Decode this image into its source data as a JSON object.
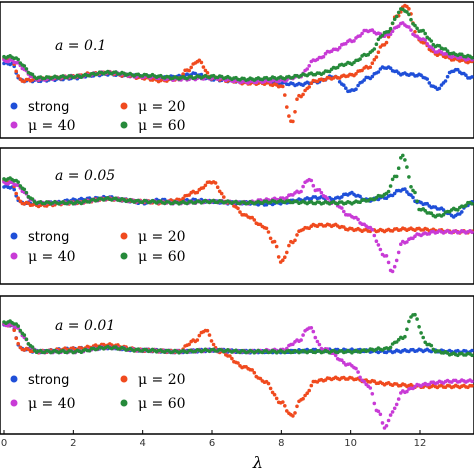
{
  "colors": {
    "strong": "#1f4fd8",
    "mu20": "#f04a1e",
    "mu40": "#c83bd6",
    "mu60": "#268a3a"
  },
  "x_axis": {
    "label": "λ",
    "ticks": [
      "0",
      "2",
      "4",
      "6",
      "8",
      "10",
      "12"
    ]
  },
  "legend": {
    "strong": "strong",
    "mu20": "μ = 20",
    "mu40": "μ = 40",
    "mu60": "μ = 60"
  },
  "chart_data": [
    {
      "type": "scatter",
      "annotation": "a = 0.1",
      "xlim": [
        0,
        13.5
      ],
      "ylim": [
        0,
        1
      ],
      "legend_position": "bottom-left",
      "series": [
        {
          "name": "strong",
          "x": [
            0.2,
            0.5,
            1,
            1.5,
            2,
            2.5,
            3,
            3.5,
            4,
            4.5,
            5,
            5.5,
            6,
            6.5,
            7,
            7.5,
            8,
            8.5,
            9,
            9.5,
            10,
            10.5,
            11,
            11.5,
            12,
            12.5,
            13,
            13.5
          ],
          "y": [
            0.55,
            0.42,
            0.42,
            0.43,
            0.44,
            0.46,
            0.47,
            0.46,
            0.45,
            0.44,
            0.45,
            0.47,
            0.43,
            0.42,
            0.41,
            0.42,
            0.4,
            0.39,
            0.41,
            0.45,
            0.34,
            0.44,
            0.52,
            0.47,
            0.46,
            0.36,
            0.5,
            0.44
          ]
        },
        {
          "name": "μ = 20",
          "x": [
            0.2,
            0.5,
            1,
            1.5,
            2,
            2.5,
            3,
            3.5,
            4,
            4.5,
            5,
            5.3,
            5.6,
            6,
            6.5,
            7,
            7.5,
            8,
            8.3,
            8.5,
            9,
            9.5,
            10,
            10.5,
            11,
            11.3,
            11.6,
            12,
            12.5,
            13,
            13.5
          ],
          "y": [
            0.58,
            0.42,
            0.43,
            0.44,
            0.45,
            0.47,
            0.48,
            0.46,
            0.44,
            0.42,
            0.43,
            0.5,
            0.57,
            0.44,
            0.42,
            0.4,
            0.4,
            0.38,
            0.1,
            0.3,
            0.42,
            0.44,
            0.46,
            0.52,
            0.7,
            0.9,
            0.99,
            0.72,
            0.62,
            0.58,
            0.56
          ]
        },
        {
          "name": "μ = 40",
          "x": [
            0.2,
            1,
            2,
            3,
            4,
            5,
            6,
            7,
            8,
            8.5,
            9,
            9.5,
            10,
            10.5,
            11,
            11.5,
            12,
            12.5,
            13,
            13.5
          ],
          "y": [
            0.57,
            0.43,
            0.45,
            0.48,
            0.45,
            0.43,
            0.44,
            0.41,
            0.42,
            0.45,
            0.58,
            0.65,
            0.72,
            0.8,
            0.76,
            0.85,
            0.74,
            0.64,
            0.6,
            0.58
          ]
        },
        {
          "name": "μ = 60",
          "x": [
            0.2,
            1,
            2,
            3,
            4,
            5,
            6,
            7,
            8,
            9,
            10,
            10.5,
            11,
            11.5,
            12,
            12.5,
            13,
            13.5
          ],
          "y": [
            0.6,
            0.44,
            0.45,
            0.48,
            0.46,
            0.44,
            0.45,
            0.43,
            0.44,
            0.47,
            0.55,
            0.62,
            0.78,
            0.96,
            0.8,
            0.68,
            0.62,
            0.6
          ]
        }
      ]
    },
    {
      "type": "scatter",
      "annotation": "a = 0.05",
      "xlim": [
        0,
        13.5
      ],
      "ylim": [
        0,
        1
      ],
      "legend_position": "bottom-left",
      "series": [
        {
          "name": "strong",
          "x": [
            0.2,
            0.5,
            1,
            1.5,
            2,
            2.5,
            3,
            3.5,
            4,
            4.5,
            5,
            5.5,
            6,
            6.5,
            7,
            7.5,
            8,
            8.5,
            9,
            9.5,
            10,
            10.5,
            11,
            11.5,
            12,
            12.5,
            13,
            13.5
          ],
          "y": [
            0.72,
            0.6,
            0.59,
            0.6,
            0.62,
            0.63,
            0.64,
            0.62,
            0.6,
            0.62,
            0.61,
            0.62,
            0.61,
            0.6,
            0.6,
            0.59,
            0.6,
            0.62,
            0.64,
            0.63,
            0.67,
            0.62,
            0.64,
            0.7,
            0.6,
            0.56,
            0.5,
            0.6
          ]
        },
        {
          "name": "μ = 20",
          "x": [
            0.2,
            0.5,
            1,
            2,
            3,
            4,
            4.5,
            5,
            5.5,
            6,
            6.5,
            7,
            7.5,
            7.8,
            8,
            8.3,
            8.6,
            9,
            9.5,
            10,
            10.5,
            11,
            11.5,
            12,
            12.5,
            13,
            13.5
          ],
          "y": [
            0.76,
            0.6,
            0.58,
            0.6,
            0.63,
            0.61,
            0.6,
            0.62,
            0.68,
            0.76,
            0.6,
            0.5,
            0.42,
            0.3,
            0.15,
            0.3,
            0.4,
            0.43,
            0.43,
            0.4,
            0.39,
            0.39,
            0.4,
            0.4,
            0.39,
            0.38,
            0.38
          ]
        },
        {
          "name": "μ = 40",
          "x": [
            0.2,
            1,
            2,
            3,
            4,
            5,
            6,
            7,
            7.5,
            8,
            8.5,
            8.8,
            9,
            9.5,
            10,
            10.5,
            11,
            11.2,
            11.5,
            12,
            12.5,
            13,
            13.5
          ],
          "y": [
            0.75,
            0.6,
            0.6,
            0.63,
            0.61,
            0.6,
            0.61,
            0.6,
            0.62,
            0.63,
            0.68,
            0.78,
            0.7,
            0.6,
            0.5,
            0.42,
            0.2,
            0.08,
            0.3,
            0.36,
            0.38,
            0.38,
            0.38
          ]
        },
        {
          "name": "μ = 60",
          "x": [
            0.2,
            1,
            2,
            3,
            4,
            5,
            6,
            7,
            8,
            9,
            10,
            10.5,
            11,
            11.3,
            11.5,
            11.8,
            12,
            12.5,
            13,
            13.5
          ],
          "y": [
            0.78,
            0.6,
            0.6,
            0.63,
            0.61,
            0.6,
            0.61,
            0.6,
            0.61,
            0.6,
            0.6,
            0.62,
            0.66,
            0.8,
            0.96,
            0.7,
            0.55,
            0.5,
            0.55,
            0.6
          ]
        }
      ]
    },
    {
      "type": "scatter",
      "annotation": "a = 0.01",
      "xlim": [
        0,
        13.5
      ],
      "ylim": [
        0,
        1
      ],
      "legend_position": "bottom-left",
      "series": [
        {
          "name": "strong",
          "x": [
            0.2,
            0.5,
            1,
            2,
            3,
            4,
            5,
            6,
            7,
            8,
            9,
            10,
            11,
            12,
            13,
            13.5
          ],
          "y": [
            0.8,
            0.62,
            0.6,
            0.62,
            0.63,
            0.61,
            0.6,
            0.61,
            0.6,
            0.6,
            0.61,
            0.61,
            0.6,
            0.61,
            0.6,
            0.6
          ]
        },
        {
          "name": "μ = 20",
          "x": [
            0.2,
            0.5,
            1,
            2,
            3,
            4,
            5,
            5.5,
            5.8,
            6.2,
            7,
            7.5,
            8,
            8.3,
            8.6,
            9,
            9.5,
            10,
            10.5,
            11,
            11.5,
            12,
            12.5,
            13,
            13.5
          ],
          "y": [
            0.8,
            0.62,
            0.6,
            0.62,
            0.65,
            0.61,
            0.6,
            0.68,
            0.76,
            0.6,
            0.48,
            0.38,
            0.22,
            0.12,
            0.25,
            0.38,
            0.4,
            0.4,
            0.38,
            0.36,
            0.35,
            0.34,
            0.34,
            0.34,
            0.34
          ]
        },
        {
          "name": "μ = 40",
          "x": [
            0.2,
            1,
            2,
            3,
            4,
            5,
            6,
            7,
            8,
            8.5,
            8.8,
            9.2,
            10,
            10.5,
            10.8,
            11,
            11.2,
            11.5,
            12,
            12.5,
            13,
            13.5
          ],
          "y": [
            0.8,
            0.6,
            0.6,
            0.63,
            0.61,
            0.6,
            0.61,
            0.6,
            0.61,
            0.68,
            0.78,
            0.62,
            0.5,
            0.35,
            0.15,
            0.03,
            0.15,
            0.3,
            0.35,
            0.37,
            0.38,
            0.38
          ]
        },
        {
          "name": "μ = 60",
          "x": [
            0.2,
            1,
            2,
            3,
            4,
            5,
            6,
            7,
            8,
            9,
            10,
            11,
            11.5,
            11.8,
            12.2,
            12.5,
            13,
            13.5
          ],
          "y": [
            0.82,
            0.6,
            0.6,
            0.63,
            0.61,
            0.6,
            0.61,
            0.6,
            0.6,
            0.6,
            0.6,
            0.62,
            0.7,
            0.88,
            0.66,
            0.6,
            0.58,
            0.58
          ]
        }
      ]
    }
  ]
}
